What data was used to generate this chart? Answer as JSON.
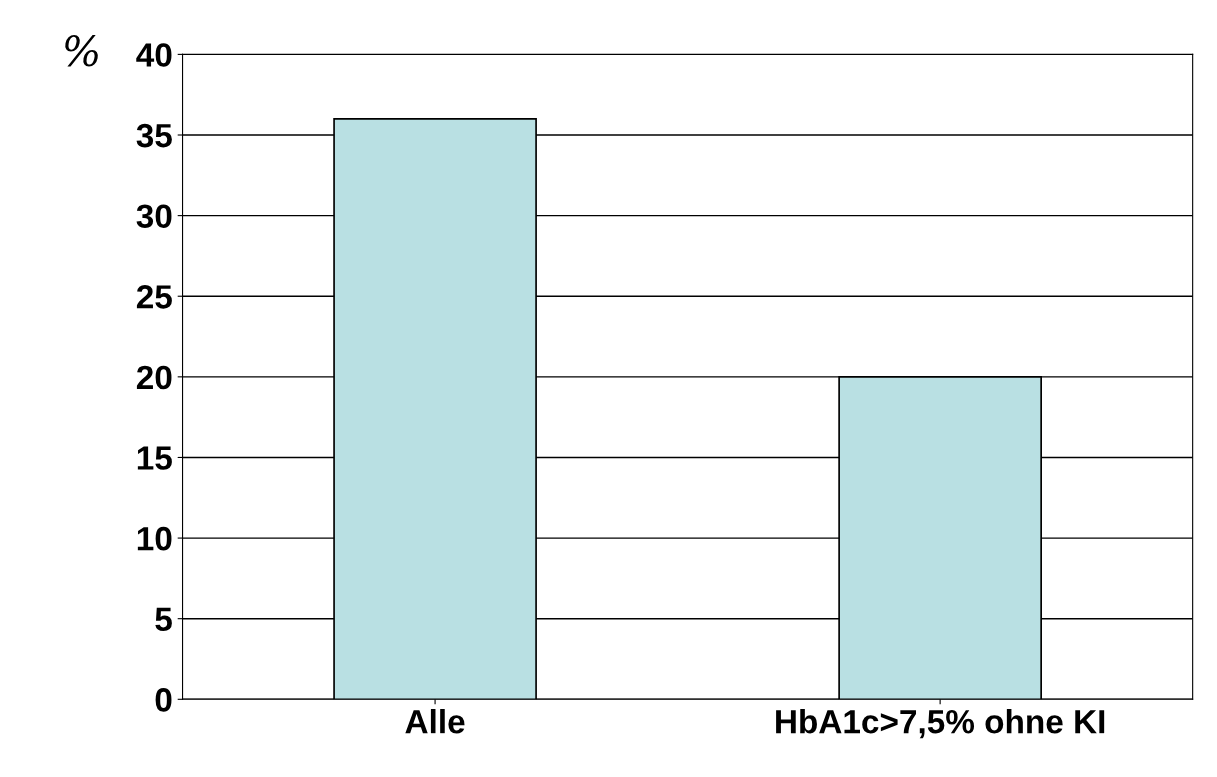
{
  "chart_data": {
    "type": "bar",
    "ylabel": "%",
    "categories": [
      "Alle",
      "HbA1c>7,5% ohne KI"
    ],
    "values": [
      36,
      20
    ],
    "color": "#b9e0e3",
    "ylim": [
      0,
      40
    ],
    "yticks": [
      0,
      5,
      10,
      15,
      20,
      25,
      30,
      35,
      40
    ],
    "grid": "y"
  }
}
